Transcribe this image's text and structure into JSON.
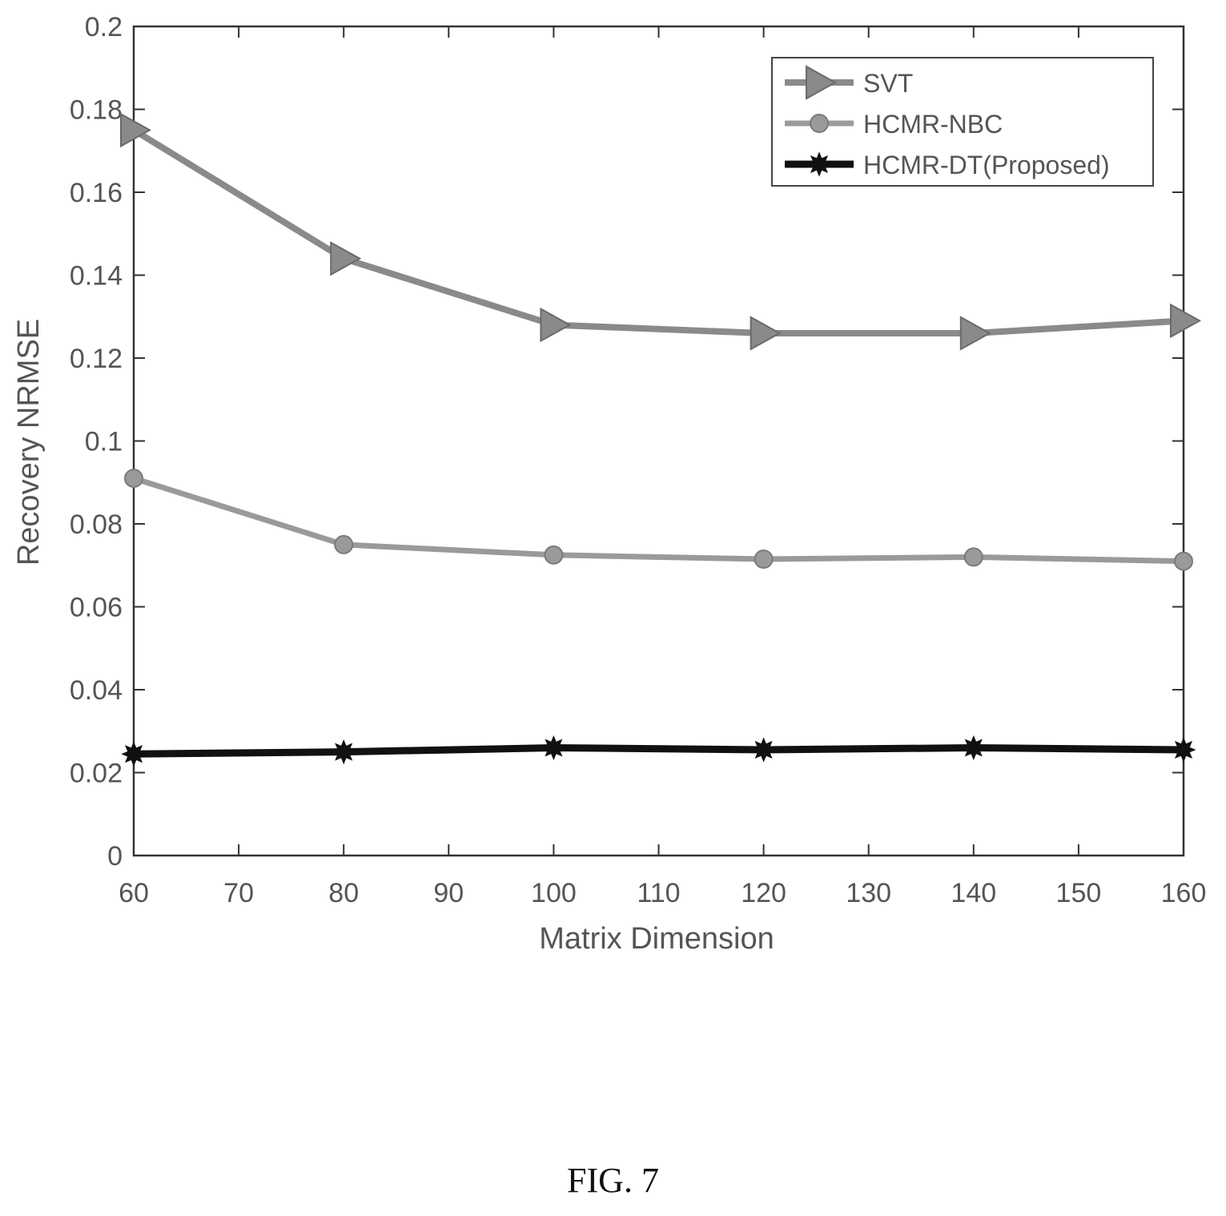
{
  "chart_data": {
    "type": "line",
    "xlabel": "Matrix Dimension",
    "ylabel": "Recovery NRMSE",
    "xlim": [
      60,
      160
    ],
    "ylim": [
      0,
      0.2
    ],
    "x_ticks": [
      "60",
      "70",
      "80",
      "90",
      "100",
      "110",
      "120",
      "130",
      "140",
      "150",
      "160"
    ],
    "y_ticks": [
      "0",
      "0.02",
      "0.04",
      "0.06",
      "0.08",
      "0.1",
      "0.12",
      "0.14",
      "0.16",
      "0.18",
      "0.2"
    ],
    "x": [
      60,
      80,
      100,
      120,
      140,
      160
    ],
    "grid": false,
    "legend_position": "top-right",
    "series": [
      {
        "name": "SVT",
        "marker": "triangle-right",
        "color": "#8a8a8a",
        "values": [
          0.175,
          0.144,
          0.128,
          0.126,
          0.126,
          0.129
        ]
      },
      {
        "name": "HCMR-NBC",
        "marker": "circle",
        "color": "#9a9a9a",
        "values": [
          0.091,
          0.075,
          0.0725,
          0.0715,
          0.072,
          0.071
        ]
      },
      {
        "name": "HCMR-DT(Proposed)",
        "marker": "star",
        "color": "#111111",
        "values": [
          0.0245,
          0.025,
          0.026,
          0.0255,
          0.026,
          0.0255
        ]
      }
    ]
  },
  "caption": "FIG. 7"
}
